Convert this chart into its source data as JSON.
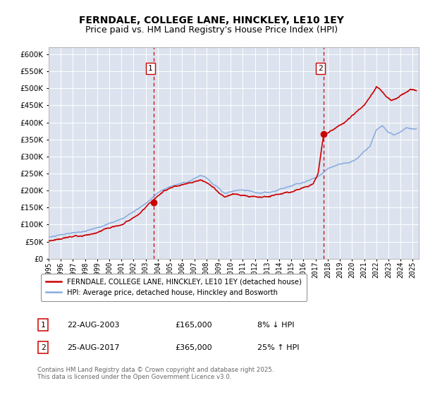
{
  "title": "FERNDALE, COLLEGE LANE, HINCKLEY, LE10 1EY",
  "subtitle": "Price paid vs. HM Land Registry's House Price Index (HPI)",
  "ylim": [
    0,
    620000
  ],
  "yticks": [
    0,
    50000,
    100000,
    150000,
    200000,
    250000,
    300000,
    350000,
    400000,
    450000,
    500000,
    550000,
    600000
  ],
  "xlim_start": 1995.0,
  "xlim_end": 2025.5,
  "background_color": "#ffffff",
  "plot_bg_color": "#dce3ef",
  "grid_color": "#ffffff",
  "red_line_color": "#cc0000",
  "blue_line_color": "#88aadd",
  "marker1_x": 2003.644,
  "marker1_y": 165000,
  "marker2_x": 2017.644,
  "marker2_y": 365000,
  "vline_color": "#cc0000",
  "legend_label_red": "FERNDALE, COLLEGE LANE, HINCKLEY, LE10 1EY (detached house)",
  "legend_label_blue": "HPI: Average price, detached house, Hinckley and Bosworth",
  "annotation1_label": "1",
  "annotation2_label": "2",
  "note1_num": "1",
  "note1_date": "22-AUG-2003",
  "note1_price": "£165,000",
  "note1_hpi": "8% ↓ HPI",
  "note2_num": "2",
  "note2_date": "25-AUG-2017",
  "note2_price": "£365,000",
  "note2_hpi": "25% ↑ HPI",
  "copyright_text": "Contains HM Land Registry data © Crown copyright and database right 2025.\nThis data is licensed under the Open Government Licence v3.0.",
  "title_fontsize": 10,
  "subtitle_fontsize": 9,
  "blue_waypoints": [
    [
      1995.0,
      63000
    ],
    [
      1996.0,
      68000
    ],
    [
      1997.0,
      72000
    ],
    [
      1998.0,
      78000
    ],
    [
      1999.0,
      85000
    ],
    [
      2000.0,
      98000
    ],
    [
      2001.0,
      112000
    ],
    [
      2002.0,
      135000
    ],
    [
      2003.0,
      155000
    ],
    [
      2004.0,
      185000
    ],
    [
      2004.8,
      200000
    ],
    [
      2005.5,
      210000
    ],
    [
      2006.5,
      218000
    ],
    [
      2007.5,
      238000
    ],
    [
      2008.0,
      230000
    ],
    [
      2008.8,
      210000
    ],
    [
      2009.5,
      188000
    ],
    [
      2010.2,
      195000
    ],
    [
      2011.0,
      192000
    ],
    [
      2011.8,
      188000
    ],
    [
      2012.5,
      185000
    ],
    [
      2013.2,
      188000
    ],
    [
      2014.0,
      196000
    ],
    [
      2015.0,
      210000
    ],
    [
      2016.0,
      225000
    ],
    [
      2017.0,
      240000
    ],
    [
      2017.5,
      252000
    ],
    [
      2018.0,
      270000
    ],
    [
      2019.0,
      282000
    ],
    [
      2019.8,
      288000
    ],
    [
      2020.5,
      300000
    ],
    [
      2021.5,
      340000
    ],
    [
      2022.0,
      385000
    ],
    [
      2022.5,
      395000
    ],
    [
      2023.0,
      375000
    ],
    [
      2023.5,
      368000
    ],
    [
      2024.0,
      375000
    ],
    [
      2024.5,
      385000
    ],
    [
      2025.3,
      382000
    ]
  ],
  "red_waypoints": [
    [
      1995.0,
      52000
    ],
    [
      1996.0,
      60000
    ],
    [
      1997.0,
      65000
    ],
    [
      1998.0,
      72000
    ],
    [
      1999.0,
      76000
    ],
    [
      2000.0,
      88000
    ],
    [
      2001.0,
      98000
    ],
    [
      2002.0,
      120000
    ],
    [
      2003.0,
      145000
    ],
    [
      2003.644,
      165000
    ],
    [
      2004.5,
      192000
    ],
    [
      2005.0,
      200000
    ],
    [
      2006.0,
      212000
    ],
    [
      2007.5,
      228000
    ],
    [
      2008.0,
      220000
    ],
    [
      2008.8,
      200000
    ],
    [
      2009.5,
      178000
    ],
    [
      2010.2,
      185000
    ],
    [
      2011.0,
      182000
    ],
    [
      2011.8,
      178000
    ],
    [
      2012.5,
      178000
    ],
    [
      2013.2,
      182000
    ],
    [
      2014.0,
      190000
    ],
    [
      2015.0,
      200000
    ],
    [
      2016.0,
      215000
    ],
    [
      2016.8,
      228000
    ],
    [
      2017.2,
      255000
    ],
    [
      2017.644,
      365000
    ],
    [
      2018.0,
      375000
    ],
    [
      2019.0,
      395000
    ],
    [
      2020.0,
      420000
    ],
    [
      2021.0,
      450000
    ],
    [
      2021.5,
      478000
    ],
    [
      2022.0,
      505000
    ],
    [
      2022.3,
      498000
    ],
    [
      2022.8,
      480000
    ],
    [
      2023.2,
      470000
    ],
    [
      2023.7,
      478000
    ],
    [
      2024.2,
      488000
    ],
    [
      2024.8,
      498000
    ],
    [
      2025.3,
      492000
    ]
  ]
}
